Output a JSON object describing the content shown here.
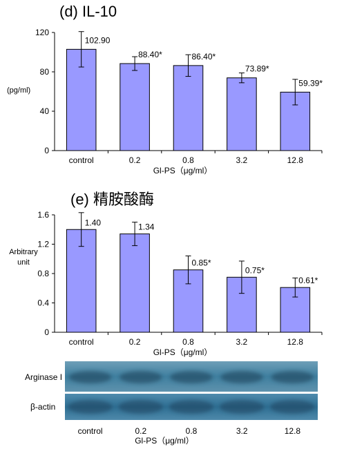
{
  "chart_data": [
    {
      "panel": "(d) IL-10",
      "type": "bar",
      "title": "(d) IL-10",
      "ylabel": "(pg/ml)",
      "xlabel": "Gl-PS（μg/ml）",
      "categories": [
        "control",
        "0.2",
        "0.8",
        "3.2",
        "12.8"
      ],
      "values": [
        102.9,
        88.4,
        86.4,
        73.89,
        59.39
      ],
      "errors": [
        18,
        7,
        11,
        5,
        13
      ],
      "data_labels": [
        "102.90",
        "88.40*",
        "86.40*",
        "73.89*",
        "59.39*"
      ],
      "ylim": [
        0,
        120
      ],
      "yticks": [
        "0",
        "40",
        "80",
        "120"
      ],
      "bar_color": "#9999ff"
    },
    {
      "panel": "(e) 精胺酸酶",
      "type": "bar",
      "title": "(e) 精胺酸酶",
      "ylabel": "Arbitrary unit",
      "xlabel": "Gl-PS（μg/ml）",
      "categories": [
        "control",
        "0.2",
        "0.8",
        "3.2",
        "12.8"
      ],
      "values": [
        1.4,
        1.34,
        0.85,
        0.75,
        0.61
      ],
      "errors": [
        0.23,
        0.16,
        0.19,
        0.22,
        0.13
      ],
      "data_labels": [
        "1.40",
        "1.34",
        "0.85*",
        "0.75*",
        "0.61*"
      ],
      "ylim": [
        0,
        1.6
      ],
      "yticks": [
        "0",
        "0.4",
        "0.8",
        "1.2",
        "1.6"
      ],
      "bar_color": "#9999ff"
    }
  ],
  "blot": {
    "rows": [
      "Arginase I",
      "β-actin"
    ],
    "lanes": [
      "control",
      "0.2",
      "0.8",
      "3.2",
      "12.8"
    ],
    "xlabel": "Gl-PS（μg/ml）"
  }
}
